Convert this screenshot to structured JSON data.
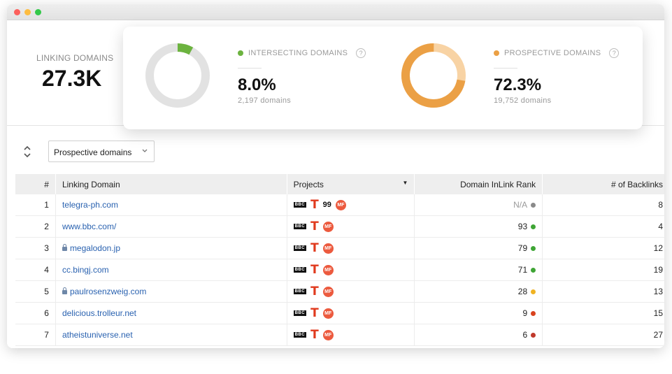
{
  "summary": {
    "linking_domains_label": "LINKING DOMAINS",
    "linking_domains_value": "27.3K"
  },
  "metrics": {
    "intersecting": {
      "label": "INTERSECTING DOMAINS",
      "value": "8.0%",
      "fraction": 0.08,
      "sub": "2,197 domains",
      "color": "#6cb33f",
      "track_color": "#e2e2e2"
    },
    "prospective": {
      "label": "PROSPECTIVE DOMAINS",
      "value": "72.3%",
      "fraction": 0.723,
      "sub": "19,752 domains",
      "color": "#eba045",
      "track_color": "#f8d3a4"
    },
    "help_icon": "?"
  },
  "filter": {
    "selected": "Prospective domains"
  },
  "table": {
    "headers": {
      "num": "#",
      "domain": "Linking Domain",
      "projects": "Projects",
      "rank": "Domain InLink Rank",
      "backlinks": "# of Backlinks"
    },
    "project_icons": {
      "bbc": "BBC",
      "t": "T",
      "ninety_nine": "99",
      "mf": "MF"
    },
    "rows": [
      {
        "num": "1",
        "domain": "telegra-ph.com",
        "secure": false,
        "has99": true,
        "rank": "N/A",
        "rank_color": "#8a8a8a",
        "backlinks": "8"
      },
      {
        "num": "2",
        "domain": "www.bbc.com/",
        "secure": false,
        "has99": false,
        "rank": "93",
        "rank_color": "#3fa535",
        "backlinks": "4"
      },
      {
        "num": "3",
        "domain": "megalodon.jp",
        "secure": true,
        "has99": false,
        "rank": "79",
        "rank_color": "#3fa535",
        "backlinks": "12"
      },
      {
        "num": "4",
        "domain": "cc.bingj.com",
        "secure": false,
        "has99": false,
        "rank": "71",
        "rank_color": "#3fa535",
        "backlinks": "19"
      },
      {
        "num": "5",
        "domain": "paulrosenzweig.com",
        "secure": true,
        "has99": false,
        "rank": "28",
        "rank_color": "#f0b323",
        "backlinks": "13"
      },
      {
        "num": "6",
        "domain": "delicious.trolleur.net",
        "secure": false,
        "has99": false,
        "rank": "9",
        "rank_color": "#d9431e",
        "backlinks": "15"
      },
      {
        "num": "7",
        "domain": "atheistuniverse.net",
        "secure": false,
        "has99": false,
        "rank": "6",
        "rank_color": "#c0392b",
        "backlinks": "27"
      }
    ]
  }
}
